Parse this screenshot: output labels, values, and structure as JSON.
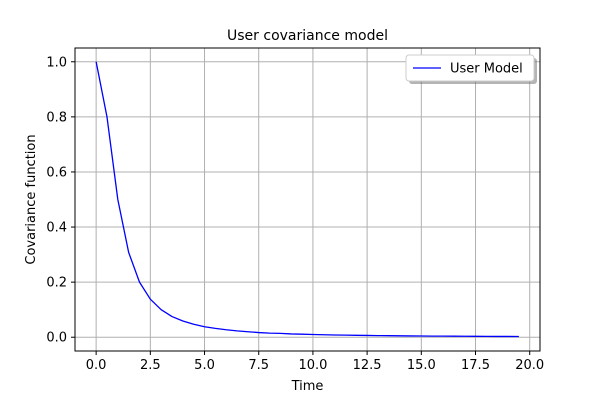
{
  "chart_data": {
    "type": "line",
    "title": "User covariance model",
    "xlabel": "Time",
    "ylabel": "Covariance function",
    "xlim": [
      -0.975,
      20.475
    ],
    "ylim": [
      -0.05,
      1.05
    ],
    "xticks": [
      0.0,
      2.5,
      5.0,
      7.5,
      10.0,
      12.5,
      15.0,
      17.5,
      20.0
    ],
    "xtick_labels": [
      "0.0",
      "2.5",
      "5.0",
      "7.5",
      "10.0",
      "12.5",
      "15.0",
      "17.5",
      "20.0"
    ],
    "yticks": [
      0.0,
      0.2,
      0.4,
      0.6,
      0.8,
      1.0
    ],
    "ytick_labels": [
      "0.0",
      "0.2",
      "0.4",
      "0.6",
      "0.8",
      "1.0"
    ],
    "grid": true,
    "legend": {
      "placement": "top-right",
      "entries": [
        "User Model"
      ]
    },
    "series": [
      {
        "name": "User Model",
        "color": "#0000ff",
        "x": [
          0,
          0.5,
          1,
          1.5,
          2,
          2.5,
          3,
          3.5,
          4,
          4.5,
          5,
          5.5,
          6,
          6.5,
          7,
          7.5,
          8,
          8.5,
          9,
          9.5,
          10,
          10.5,
          11,
          11.5,
          12,
          12.5,
          13,
          13.5,
          14,
          14.5,
          15,
          15.5,
          16,
          16.5,
          17,
          17.5,
          18,
          18.5,
          19,
          19.5
        ],
        "y": [
          1.0,
          0.8,
          0.5,
          0.308,
          0.2,
          0.138,
          0.1,
          0.075,
          0.059,
          0.047,
          0.038,
          0.032,
          0.027,
          0.023,
          0.02,
          0.017,
          0.015,
          0.014,
          0.012,
          0.011,
          0.01,
          0.0091,
          0.0082,
          0.0075,
          0.0069,
          0.0064,
          0.0059,
          0.0055,
          0.0051,
          0.0047,
          0.0044,
          0.0041,
          0.0039,
          0.0037,
          0.0035,
          0.0033,
          0.0031,
          0.0029,
          0.0028,
          0.0026
        ]
      }
    ]
  }
}
